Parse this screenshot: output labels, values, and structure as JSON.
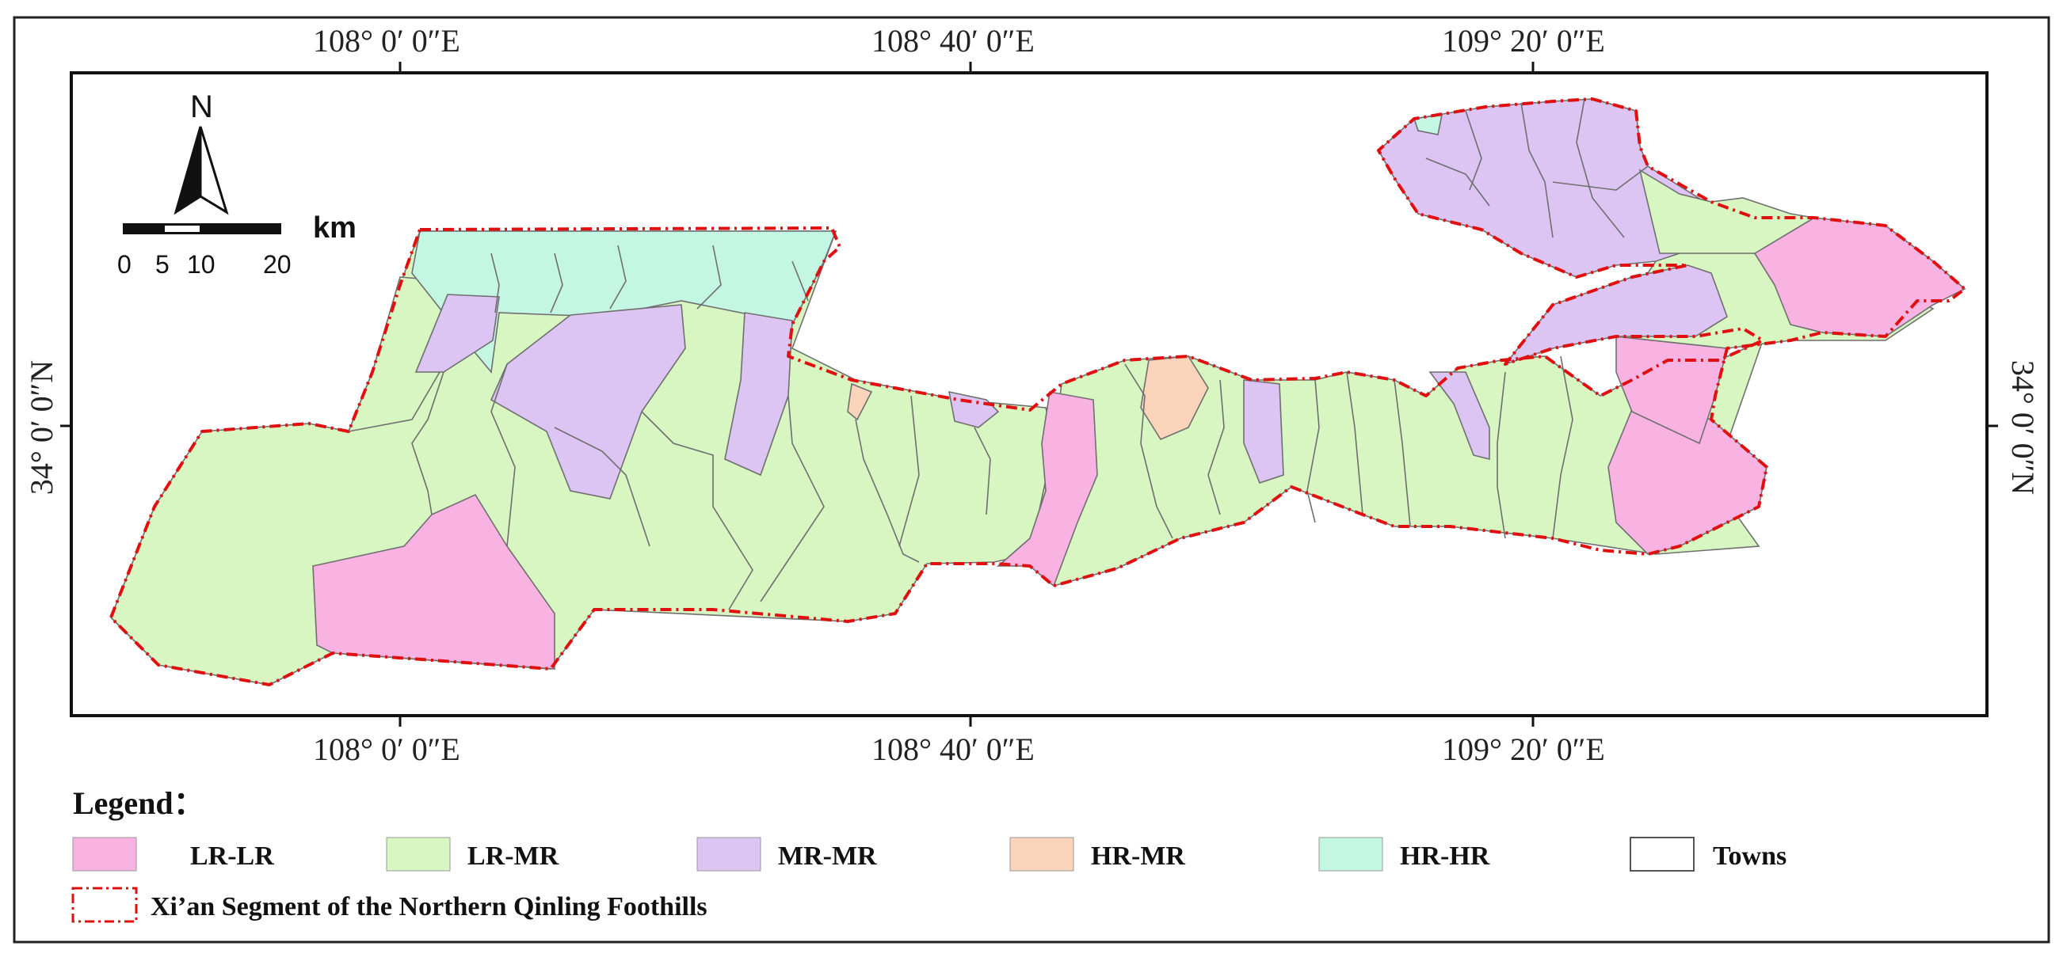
{
  "map": {
    "lon_labels": [
      "108°  0′ 0″E",
      "108°  40′ 0″E",
      "109°  20′ 0″E"
    ],
    "lat_label": "34°  0′ 0″N",
    "north_label": "N",
    "scale": {
      "ticks": [
        "0",
        "5",
        "10",
        "20"
      ],
      "unit": "km"
    }
  },
  "legend": {
    "title": "Legend：",
    "items": [
      {
        "label": "LR-LR",
        "color": "#F9B3E2"
      },
      {
        "label": "LR-MR",
        "color": "#D7F6C2"
      },
      {
        "label": "MR-MR",
        "color": "#DCC4F3"
      },
      {
        "label": "HR-MR",
        "color": "#F9D3BA"
      },
      {
        "label": "HR-HR",
        "color": "#C4F6E4"
      },
      {
        "label": "Towns",
        "color": "#FFFFFF"
      }
    ],
    "boundary_label": "Xi’an Segment of the Northern Qinling Foothills",
    "boundary_color": "#E01010"
  }
}
